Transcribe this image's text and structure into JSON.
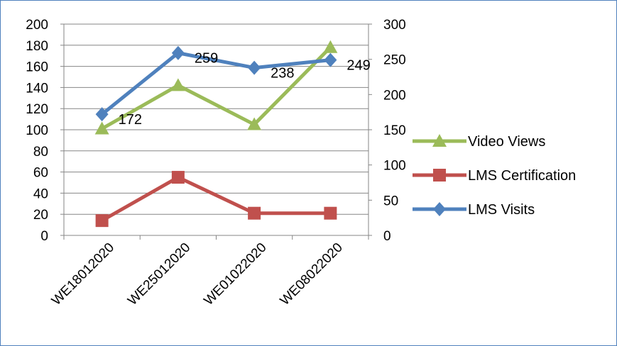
{
  "chart_data": {
    "type": "line",
    "categories": [
      "WE18012020",
      "WE25012020",
      "WE01022020",
      "WE08022020"
    ],
    "y_left": {
      "min": 0,
      "max": 200,
      "step": 20
    },
    "y_right": {
      "min": 0,
      "max": 300,
      "step": 50
    },
    "grid": true,
    "legend_position": "right",
    "series": [
      {
        "name": "Video Views",
        "axis": "left",
        "values": [
          101,
          142,
          105,
          178
        ],
        "color": "#9bbb59",
        "marker": "triangle",
        "data_labels": []
      },
      {
        "name": "LMS Certification",
        "axis": "left",
        "values": [
          14,
          55,
          21,
          21
        ],
        "color": "#c0504d",
        "marker": "square",
        "data_labels": []
      },
      {
        "name": "LMS Visits",
        "axis": "right",
        "values": [
          172,
          259,
          238,
          249
        ],
        "color": "#4f81bd",
        "marker": "diamond",
        "data_labels": [
          "172",
          "259",
          "238",
          "249"
        ]
      }
    ]
  }
}
